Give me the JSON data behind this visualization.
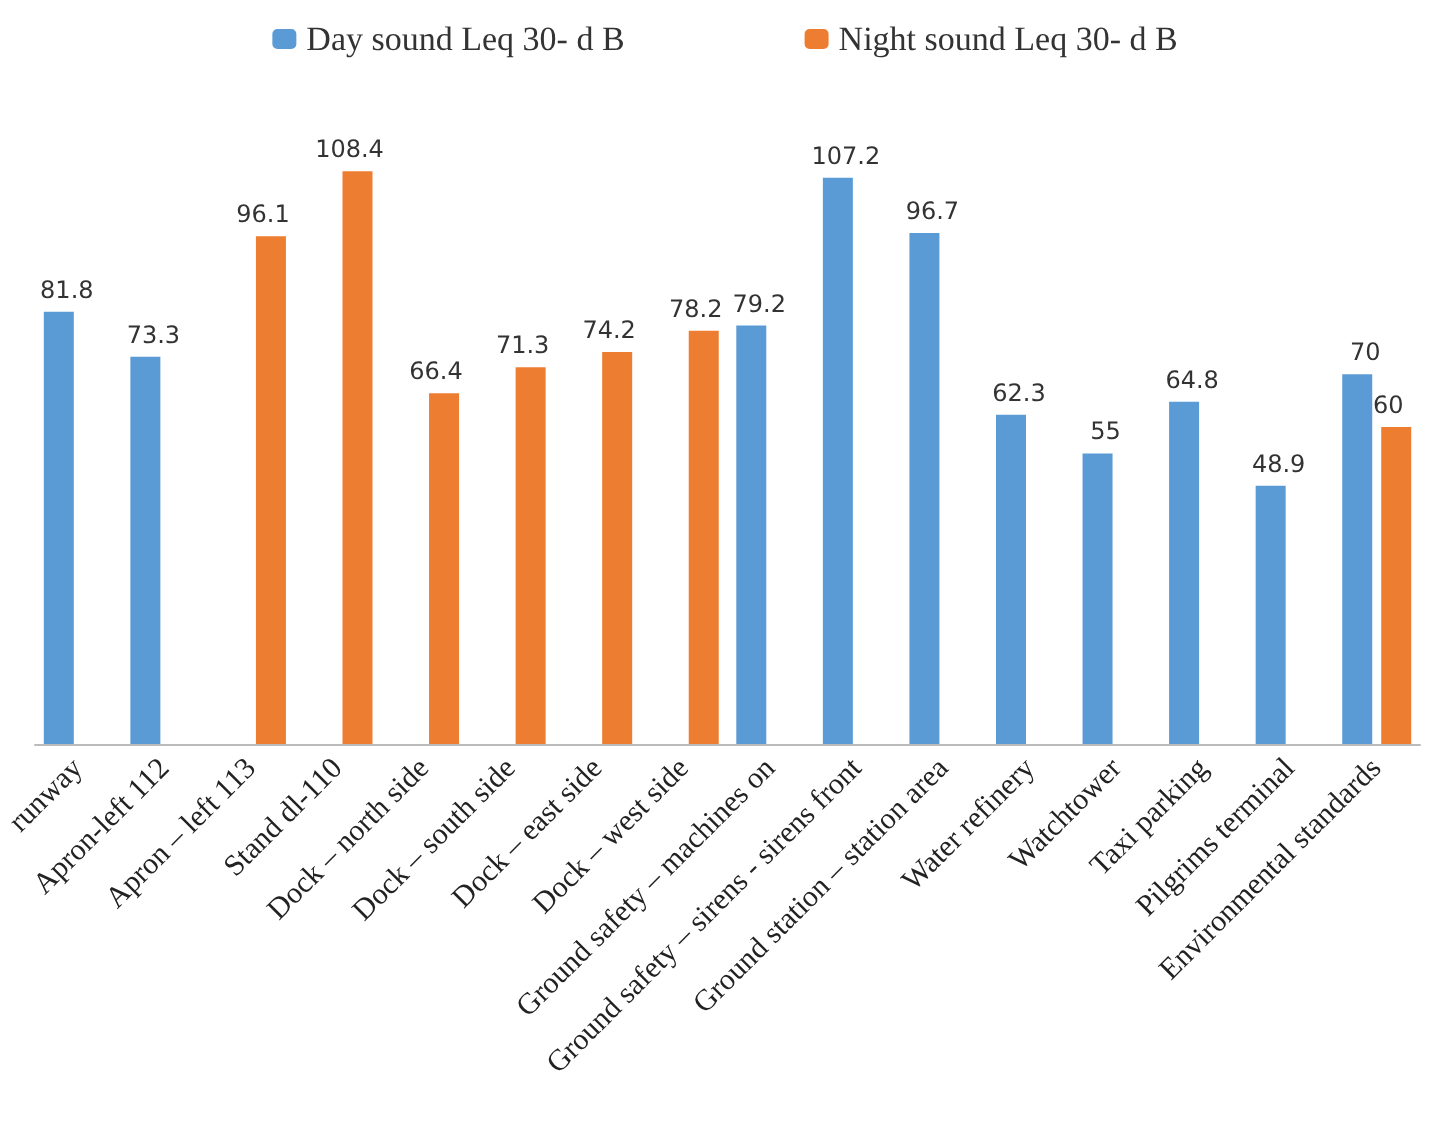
{
  "chart_data": {
    "type": "bar",
    "categories": [
      "runway",
      "Apron-left 112",
      "Apron – left 113",
      "Stand dl-110",
      "Dock – north side",
      "Dock – south side",
      "Dock – east side",
      "Dock – west side",
      "Ground safety – machines on",
      "Ground safety – sirens - sirens front",
      "Ground station – station area",
      "Water refinery",
      "Watchtower",
      "Taxi parking",
      "Pilgrims terminal",
      "Environmental standards"
    ],
    "series": [
      {
        "name": "Day sound Leq 30- d B",
        "color": "#5b9bd5",
        "values": [
          81.8,
          73.3,
          null,
          null,
          null,
          null,
          null,
          null,
          79.2,
          107.2,
          96.7,
          62.3,
          55,
          64.8,
          48.9,
          70
        ]
      },
      {
        "name": "Night sound Leq 30- d B",
        "color": "#ed7d31",
        "values": [
          null,
          null,
          96.1,
          108.4,
          66.4,
          71.3,
          74.2,
          78.2,
          null,
          null,
          null,
          null,
          null,
          null,
          null,
          60
        ]
      }
    ],
    "data_labels": true,
    "legend": "top"
  }
}
